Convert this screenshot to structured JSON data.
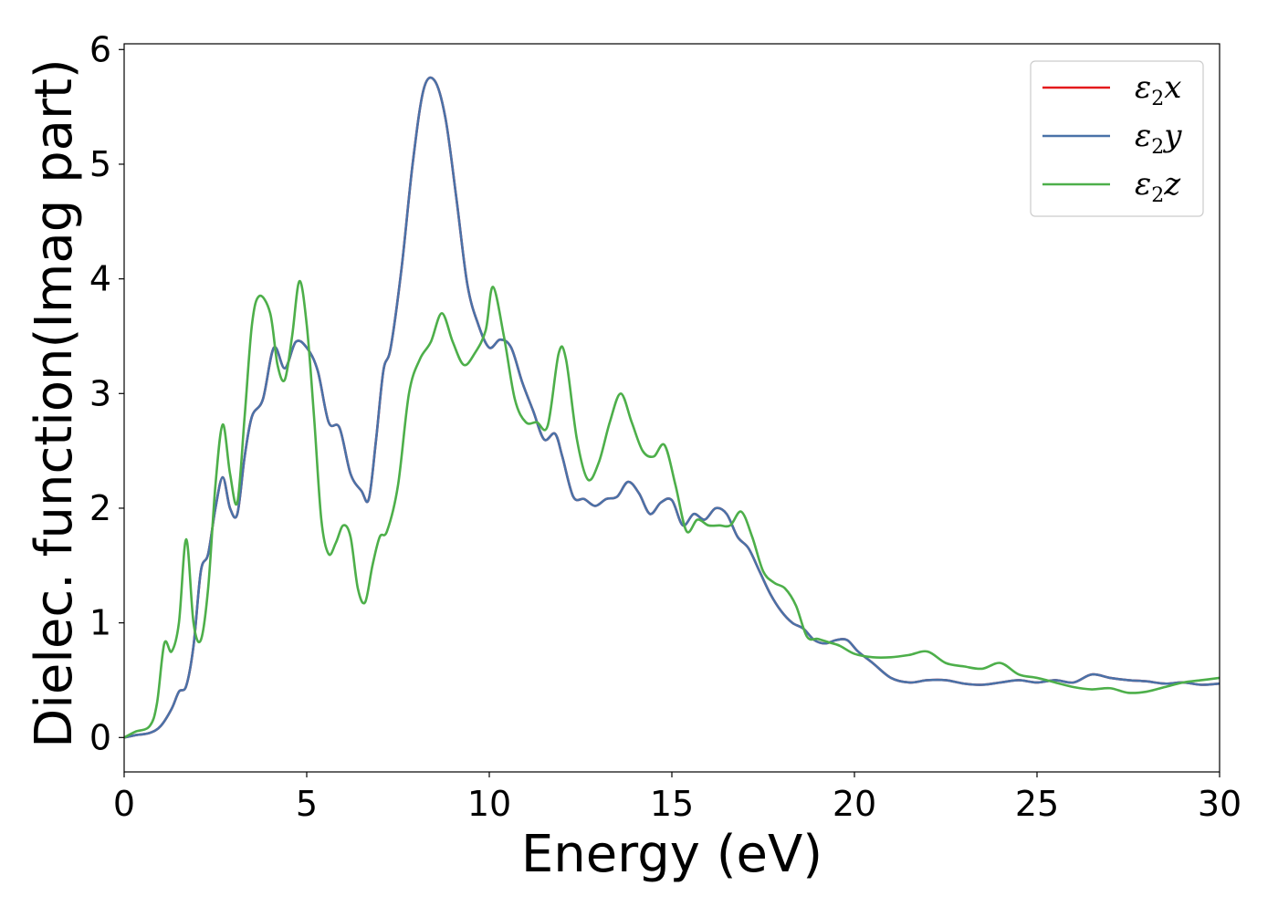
{
  "chart_data": {
    "type": "line",
    "xlabel": "Energy (eV)",
    "ylabel": "Dielec. function(Imag part)",
    "xlim": [
      0,
      30
    ],
    "ylim": [
      -0.3,
      6.05
    ],
    "xticks": [
      "0",
      "5",
      "10",
      "15",
      "20",
      "25",
      "30"
    ],
    "yticks": [
      "0",
      "1",
      "2",
      "3",
      "4",
      "5",
      "6"
    ],
    "grid": false,
    "legend_position": "top-right",
    "series": [
      {
        "name": "ε₂x",
        "legend_main": "ε",
        "legend_sub": "2",
        "legend_suffix": "x",
        "color": "#e41a1c",
        "shared_with": "ε₂y",
        "x": [
          0,
          0.3,
          0.7,
          1.0,
          1.3,
          1.5,
          1.7,
          1.9,
          2.1,
          2.3,
          2.5,
          2.7,
          2.9,
          3.1,
          3.3,
          3.5,
          3.8,
          4.1,
          4.4,
          4.7,
          5.0,
          5.3,
          5.6,
          5.9,
          6.2,
          6.5,
          6.7,
          6.9,
          7.1,
          7.3,
          7.6,
          7.9,
          8.2,
          8.5,
          8.8,
          9.1,
          9.4,
          9.7,
          10.0,
          10.3,
          10.6,
          10.9,
          11.2,
          11.5,
          11.8,
          12.0,
          12.3,
          12.6,
          12.9,
          13.2,
          13.5,
          13.8,
          14.1,
          14.4,
          14.7,
          15.0,
          15.3,
          15.6,
          15.9,
          16.2,
          16.5,
          16.8,
          17.1,
          17.4,
          17.7,
          18.0,
          18.3,
          18.6,
          18.9,
          19.2,
          19.5,
          19.8,
          20.1,
          20.5,
          21.0,
          21.5,
          22.0,
          22.5,
          23.0,
          23.5,
          24.0,
          24.5,
          25.0,
          25.5,
          26.0,
          26.5,
          27.0,
          27.5,
          28.0,
          28.5,
          29.0,
          29.5,
          30.0
        ],
        "values": [
          0.0,
          0.02,
          0.04,
          0.1,
          0.25,
          0.4,
          0.45,
          0.8,
          1.45,
          1.6,
          2.0,
          2.27,
          2.0,
          1.95,
          2.45,
          2.8,
          2.95,
          3.4,
          3.22,
          3.45,
          3.4,
          3.2,
          2.75,
          2.7,
          2.3,
          2.15,
          2.08,
          2.6,
          3.2,
          3.4,
          4.1,
          5.0,
          5.65,
          5.73,
          5.4,
          4.7,
          3.95,
          3.6,
          3.4,
          3.47,
          3.4,
          3.1,
          2.85,
          2.6,
          2.65,
          2.45,
          2.1,
          2.08,
          2.02,
          2.08,
          2.1,
          2.23,
          2.13,
          1.95,
          2.05,
          2.07,
          1.85,
          1.95,
          1.9,
          2.0,
          1.95,
          1.75,
          1.65,
          1.45,
          1.25,
          1.1,
          1.0,
          0.95,
          0.85,
          0.82,
          0.85,
          0.85,
          0.75,
          0.65,
          0.52,
          0.48,
          0.5,
          0.5,
          0.47,
          0.46,
          0.48,
          0.5,
          0.48,
          0.5,
          0.48,
          0.55,
          0.52,
          0.5,
          0.49,
          0.47,
          0.48,
          0.46,
          0.47
        ]
      },
      {
        "name": "ε₂y",
        "legend_main": "ε",
        "legend_sub": "2",
        "legend_suffix": "y",
        "color": "#4a72a8",
        "x": [
          0,
          0.3,
          0.7,
          1.0,
          1.3,
          1.5,
          1.7,
          1.9,
          2.1,
          2.3,
          2.5,
          2.7,
          2.9,
          3.1,
          3.3,
          3.5,
          3.8,
          4.1,
          4.4,
          4.7,
          5.0,
          5.3,
          5.6,
          5.9,
          6.2,
          6.5,
          6.7,
          6.9,
          7.1,
          7.3,
          7.6,
          7.9,
          8.2,
          8.5,
          8.8,
          9.1,
          9.4,
          9.7,
          10.0,
          10.3,
          10.6,
          10.9,
          11.2,
          11.5,
          11.8,
          12.0,
          12.3,
          12.6,
          12.9,
          13.2,
          13.5,
          13.8,
          14.1,
          14.4,
          14.7,
          15.0,
          15.3,
          15.6,
          15.9,
          16.2,
          16.5,
          16.8,
          17.1,
          17.4,
          17.7,
          18.0,
          18.3,
          18.6,
          18.9,
          19.2,
          19.5,
          19.8,
          20.1,
          20.5,
          21.0,
          21.5,
          22.0,
          22.5,
          23.0,
          23.5,
          24.0,
          24.5,
          25.0,
          25.5,
          26.0,
          26.5,
          27.0,
          27.5,
          28.0,
          28.5,
          29.0,
          29.5,
          30.0
        ],
        "values": [
          0.0,
          0.02,
          0.04,
          0.1,
          0.25,
          0.4,
          0.45,
          0.8,
          1.45,
          1.6,
          2.0,
          2.27,
          2.0,
          1.95,
          2.45,
          2.8,
          2.95,
          3.4,
          3.22,
          3.45,
          3.4,
          3.2,
          2.75,
          2.7,
          2.3,
          2.15,
          2.08,
          2.6,
          3.2,
          3.4,
          4.1,
          5.0,
          5.65,
          5.73,
          5.4,
          4.7,
          3.95,
          3.6,
          3.4,
          3.47,
          3.4,
          3.1,
          2.85,
          2.6,
          2.65,
          2.45,
          2.1,
          2.08,
          2.02,
          2.08,
          2.1,
          2.23,
          2.13,
          1.95,
          2.05,
          2.07,
          1.85,
          1.95,
          1.9,
          2.0,
          1.95,
          1.75,
          1.65,
          1.45,
          1.25,
          1.1,
          1.0,
          0.95,
          0.85,
          0.82,
          0.85,
          0.85,
          0.75,
          0.65,
          0.52,
          0.48,
          0.5,
          0.5,
          0.47,
          0.46,
          0.48,
          0.5,
          0.48,
          0.5,
          0.48,
          0.55,
          0.52,
          0.5,
          0.49,
          0.47,
          0.48,
          0.46,
          0.47
        ]
      },
      {
        "name": "ε₂z",
        "legend_main": "ε",
        "legend_sub": "2",
        "legend_suffix": "z",
        "color": "#4daf4a",
        "x": [
          0,
          0.3,
          0.7,
          0.9,
          1.1,
          1.3,
          1.5,
          1.7,
          1.9,
          2.1,
          2.3,
          2.5,
          2.7,
          2.9,
          3.1,
          3.3,
          3.5,
          3.7,
          4.0,
          4.2,
          4.4,
          4.6,
          4.8,
          5.0,
          5.2,
          5.4,
          5.6,
          5.8,
          6.0,
          6.2,
          6.4,
          6.6,
          6.8,
          7.0,
          7.2,
          7.5,
          7.8,
          8.1,
          8.4,
          8.7,
          9.0,
          9.3,
          9.6,
          9.9,
          10.1,
          10.4,
          10.7,
          11.0,
          11.3,
          11.6,
          11.9,
          12.1,
          12.4,
          12.7,
          13.0,
          13.3,
          13.6,
          13.9,
          14.2,
          14.5,
          14.8,
          15.1,
          15.4,
          15.7,
          16.0,
          16.3,
          16.6,
          16.9,
          17.2,
          17.5,
          17.8,
          18.1,
          18.4,
          18.7,
          19.0,
          19.3,
          19.6,
          20.0,
          20.5,
          21.0,
          21.5,
          22.0,
          22.5,
          23.0,
          23.5,
          24.0,
          24.5,
          25.0,
          25.5,
          26.0,
          26.5,
          27.0,
          27.5,
          28.0,
          28.5,
          29.0,
          29.5,
          30.0
        ],
        "values": [
          0.0,
          0.05,
          0.1,
          0.3,
          0.82,
          0.75,
          1.0,
          1.73,
          1.0,
          0.85,
          1.3,
          2.2,
          2.73,
          2.3,
          2.05,
          2.8,
          3.6,
          3.85,
          3.7,
          3.25,
          3.12,
          3.5,
          3.98,
          3.6,
          2.8,
          1.9,
          1.6,
          1.7,
          1.85,
          1.75,
          1.3,
          1.18,
          1.5,
          1.75,
          1.8,
          2.2,
          3.0,
          3.3,
          3.45,
          3.7,
          3.45,
          3.25,
          3.35,
          3.55,
          3.93,
          3.5,
          2.95,
          2.75,
          2.75,
          2.72,
          3.35,
          3.3,
          2.6,
          2.25,
          2.4,
          2.75,
          3.0,
          2.75,
          2.5,
          2.45,
          2.55,
          2.2,
          1.8,
          1.9,
          1.85,
          1.85,
          1.85,
          1.97,
          1.75,
          1.45,
          1.35,
          1.3,
          1.15,
          0.88,
          0.86,
          0.83,
          0.8,
          0.73,
          0.7,
          0.7,
          0.72,
          0.75,
          0.65,
          0.62,
          0.6,
          0.65,
          0.55,
          0.52,
          0.48,
          0.44,
          0.42,
          0.43,
          0.39,
          0.4,
          0.44,
          0.48,
          0.5,
          0.52
        ]
      }
    ]
  }
}
